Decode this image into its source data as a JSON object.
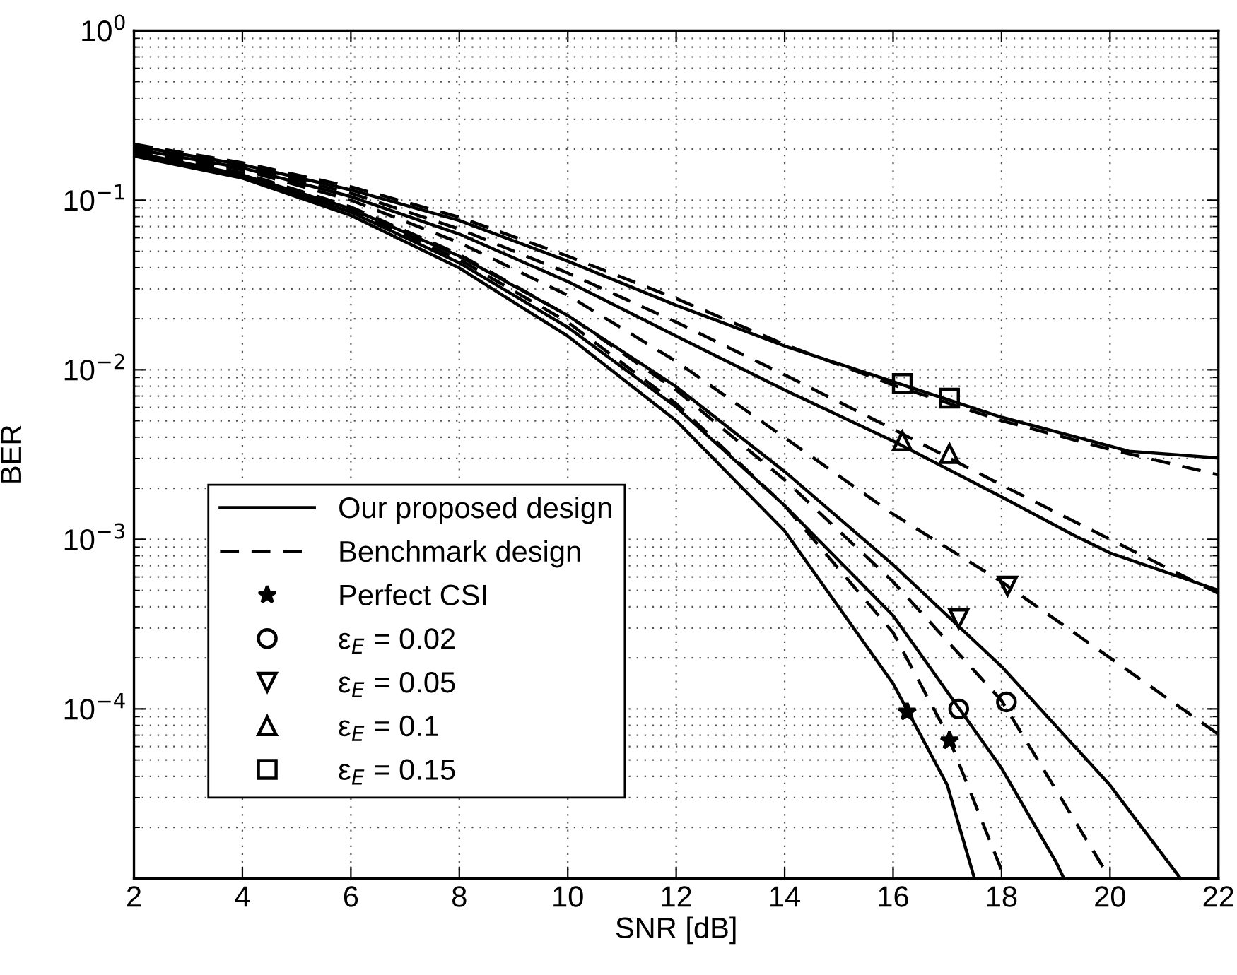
{
  "chart_data": {
    "type": "line",
    "xlabel": "SNR [dB]",
    "ylabel": "BER",
    "log": "y",
    "grid": true,
    "legend": "bottom left",
    "xlim": [
      2,
      22
    ],
    "ylim": [
      1e-05,
      1
    ],
    "xticks": [
      2,
      4,
      6,
      8,
      10,
      12,
      14,
      16,
      18,
      20,
      22
    ],
    "yticks": [
      {
        "value": 1e-05,
        "label": null
      },
      {
        "value": 0.0001,
        "label": "10$^{−4}$"
      },
      {
        "value": 0.001,
        "label": "10$^{−3}$"
      },
      {
        "value": 0.01,
        "label": "10$^{−2}$"
      },
      {
        "value": 0.1,
        "label": "10$^{−1}$"
      },
      {
        "value": 1,
        "label": "10$^{0}$"
      }
    ],
    "series": [
      {
        "name": "Our proposed design",
        "color": "#000000",
        "line_style": "solid",
        "marker": "none",
        "x": [
          2,
          4,
          6,
          8,
          10,
          12,
          14,
          16,
          17,
          17.5
        ],
        "values": [
          0.182,
          0.135,
          0.0813,
          0.0398,
          0.0158,
          0.00501,
          0.00112,
          0.000141,
          3.55e-05,
          1e-05
        ]
      },
      {
        "name": "Benchmark design",
        "color": "#000000",
        "line_style": "dashed",
        "marker": "none",
        "x": [
          2,
          4,
          6,
          8,
          10,
          12,
          14,
          16,
          17,
          18,
          18.1
        ],
        "values": [
          0.191,
          0.141,
          0.0871,
          0.0447,
          0.0191,
          0.00631,
          0.00158,
          0.000282,
          7.08e-05,
          1.12e-05,
          1e-05
        ]
      },
      {
        "color": "#000000",
        "line_style": "solid",
        "marker": "none",
        "x": [
          2,
          4,
          6,
          8,
          10,
          12,
          14,
          16,
          17,
          18,
          19,
          19.15
        ],
        "values": [
          0.186,
          0.138,
          0.0851,
          0.0427,
          0.0178,
          0.00603,
          0.00158,
          0.000355,
          0.000126,
          4.47e-05,
          1.26e-05,
          1e-05
        ]
      },
      {
        "color": "#000000",
        "line_style": "dashed",
        "marker": "none",
        "x": [
          2,
          4,
          6,
          8,
          10,
          12,
          14,
          16,
          18,
          20
        ],
        "values": [
          0.195,
          0.145,
          0.0912,
          0.0479,
          0.0209,
          0.00759,
          0.00224,
          0.000562,
          0.000112,
          1e-05
        ]
      },
      {
        "color": "#000000",
        "line_style": "solid",
        "marker": "none",
        "x": [
          2,
          4,
          6,
          8,
          10,
          12,
          14,
          16,
          18,
          20,
          21.3
        ],
        "values": [
          0.191,
          0.141,
          0.0891,
          0.0468,
          0.0209,
          0.00794,
          0.00251,
          0.000708,
          0.000178,
          3.55e-05,
          1e-05
        ]
      },
      {
        "color": "#000000",
        "line_style": "dashed",
        "marker": "none",
        "x": [
          2,
          4,
          6,
          8,
          10,
          12,
          14,
          16,
          18,
          20,
          22
        ],
        "values": [
          0.2,
          0.151,
          0.1,
          0.0562,
          0.0275,
          0.0112,
          0.00398,
          0.00141,
          0.000562,
          0.0002,
          7.08e-05
        ]
      },
      {
        "color": "#000000",
        "line_style": "solid",
        "marker": "none",
        "x": [
          2,
          4,
          6,
          8,
          10,
          12,
          14,
          16,
          18,
          19.3,
          20,
          22
        ],
        "values": [
          0.2,
          0.155,
          0.105,
          0.0631,
          0.0331,
          0.0158,
          0.00759,
          0.0038,
          0.00178,
          0.00107,
          0.000832,
          0.000501
        ]
      },
      {
        "color": "#000000",
        "line_style": "dashed",
        "marker": "none",
        "x": [
          2,
          4,
          6,
          8,
          10,
          12,
          14,
          16,
          18,
          20,
          22
        ],
        "values": [
          0.204,
          0.158,
          0.11,
          0.0676,
          0.0372,
          0.0191,
          0.00933,
          0.00447,
          0.00209,
          0.001,
          0.000479
        ]
      },
      {
        "color": "#000000",
        "line_style": "solid",
        "marker": "none",
        "x": [
          2,
          4,
          6,
          8,
          10,
          12,
          14,
          16,
          18,
          20,
          20.35,
          22
        ],
        "values": [
          0.209,
          0.162,
          0.115,
          0.0759,
          0.0437,
          0.024,
          0.0138,
          0.00851,
          0.00525,
          0.00355,
          0.00331,
          0.00302
        ]
      },
      {
        "color": "#000000",
        "line_style": "dashed",
        "marker": "none",
        "x": [
          2,
          4,
          6,
          8,
          10,
          12,
          14,
          16,
          18,
          20,
          22
        ],
        "values": [
          0.214,
          0.166,
          0.12,
          0.0794,
          0.0468,
          0.0263,
          0.0141,
          0.00813,
          0.00501,
          0.00339,
          0.0024
        ]
      },
      {
        "name": "Perfect CSI",
        "type": "scatter",
        "color": "#000000",
        "marker": "star",
        "x": [
          16.26,
          17.04
        ],
        "values": [
          9.6e-05,
          6.5e-05
        ]
      },
      {
        "name": "ε$_{E}$ = 0.02",
        "type": "scatter",
        "color": "#000000",
        "marker": "circle",
        "x": [
          17.21,
          18.09
        ],
        "values": [
          0.0001,
          0.00011
        ]
      },
      {
        "name": "ε$_{E}$ = 0.05",
        "type": "scatter",
        "color": "#000000",
        "marker": "triangle-down",
        "x": [
          17.21,
          18.11
        ],
        "values": [
          0.00034,
          0.00053
        ]
      },
      {
        "name": "ε$_{E}$ = 0.1",
        "type": "scatter",
        "color": "#000000",
        "marker": "triangle",
        "x": [
          16.17,
          17.04
        ],
        "values": [
          0.0038,
          0.0032
        ]
      },
      {
        "name": "ε$_{E}$ = 0.15",
        "type": "scatter",
        "color": "#000000",
        "marker": "square",
        "x": [
          16.17,
          17.04
        ],
        "values": [
          0.0083,
          0.0068
        ]
      }
    ]
  }
}
